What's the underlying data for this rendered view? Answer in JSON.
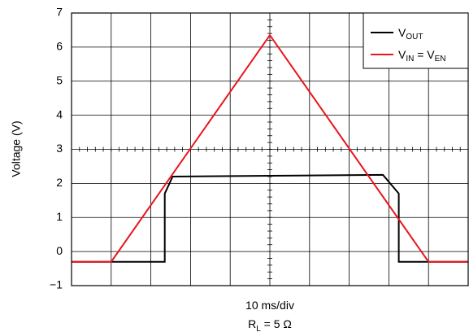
{
  "chart_data": {
    "type": "line",
    "ylabel": "Voltage (V)",
    "xlabel": "10 ms/div",
    "caption": {
      "main": "R",
      "sub": "L",
      "rest": " = 5 Ω"
    },
    "xlim": [
      0,
      10
    ],
    "ylim": [
      -1,
      7
    ],
    "yticks": [
      "7",
      "6",
      "5",
      "4",
      "3",
      "2",
      "1",
      "0",
      "−1"
    ],
    "ytick_values": [
      7,
      6,
      5,
      4,
      3,
      2,
      1,
      0,
      -1
    ],
    "grid": true,
    "legend_placement": "top-right",
    "series": [
      {
        "name": "VOUT",
        "label_main": "V",
        "label_sub": "OUT",
        "color": "#000000",
        "x": [
          0,
          2.35,
          2.35,
          2.55,
          7.85,
          8.25,
          8.25,
          10
        ],
        "y": [
          -0.3,
          -0.3,
          1.7,
          2.2,
          2.25,
          1.7,
          -0.3,
          -0.3
        ]
      },
      {
        "name": "VIN = VEN",
        "label_main": "V",
        "label_sub": "IN",
        "label_mid": " = V",
        "label_sub2": "EN",
        "color": "#e8141c",
        "x": [
          0,
          1.0,
          5.0,
          9.0,
          10
        ],
        "y": [
          -0.3,
          -0.3,
          6.35,
          -0.3,
          -0.3
        ]
      }
    ]
  }
}
